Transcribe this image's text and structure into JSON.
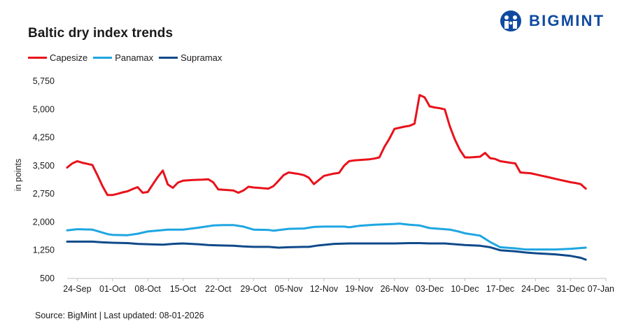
{
  "header": {
    "title": "Baltic dry index trends",
    "brand": "BIGMINT"
  },
  "footer": {
    "source": "Source: BigMint | Last updated: 08-01-2026"
  },
  "colors": {
    "capesize": "#e8121b",
    "panamax": "#1ea6e2",
    "supramax": "#0f4a8a",
    "brand": "#0f4aa1"
  },
  "chart_data": {
    "type": "line",
    "title": "Baltic dry index trends",
    "xlabel": "",
    "ylabel": "in points",
    "ylim": [
      500,
      5750
    ],
    "yticks": [
      500,
      1250,
      2000,
      2750,
      3500,
      4250,
      5000,
      5750
    ],
    "ytick_labels": [
      "500",
      "1,250",
      "2,000",
      "2,750",
      "3,500",
      "4,250",
      "5,000",
      "5,750"
    ],
    "x_start": "2025-09-22",
    "x_end": "2026-01-07",
    "xticks": [
      "2025-09-24",
      "2025-10-01",
      "2025-10-08",
      "2025-10-15",
      "2025-10-22",
      "2025-10-29",
      "2025-11-05",
      "2025-11-12",
      "2025-11-19",
      "2025-11-26",
      "2025-12-03",
      "2025-12-10",
      "2025-12-17",
      "2025-12-24",
      "2025-12-31",
      "2026-01-07"
    ],
    "xtick_labels": [
      "24-Sep",
      "01-Oct",
      "08-Oct",
      "15-Oct",
      "22-Oct",
      "29-Oct",
      "05-Nov",
      "12-Nov",
      "19-Nov",
      "26-Nov",
      "03-Dec",
      "10-Dec",
      "17-Dec",
      "24-Dec",
      "31-Dec",
      "07-Jan"
    ],
    "grid": false,
    "legend_position": "top-left",
    "series": [
      {
        "name": "Capesize",
        "color": "#e8121b",
        "points": [
          [
            "2025-09-22",
            3450
          ],
          [
            "2025-09-23",
            3560
          ],
          [
            "2025-09-24",
            3620
          ],
          [
            "2025-09-25",
            3580
          ],
          [
            "2025-09-26",
            3550
          ],
          [
            "2025-09-27",
            3520
          ],
          [
            "2025-09-28",
            3250
          ],
          [
            "2025-09-29",
            2960
          ],
          [
            "2025-09-30",
            2720
          ],
          [
            "2025-10-01",
            2720
          ],
          [
            "2025-10-02",
            2750
          ],
          [
            "2025-10-03",
            2790
          ],
          [
            "2025-10-04",
            2820
          ],
          [
            "2025-10-05",
            2880
          ],
          [
            "2025-10-06",
            2930
          ],
          [
            "2025-10-07",
            2780
          ],
          [
            "2025-10-08",
            2800
          ],
          [
            "2025-10-09",
            3000
          ],
          [
            "2025-10-10",
            3200
          ],
          [
            "2025-10-11",
            3370
          ],
          [
            "2025-10-12",
            3000
          ],
          [
            "2025-10-13",
            2910
          ],
          [
            "2025-10-14",
            3050
          ],
          [
            "2025-10-15",
            3100
          ],
          [
            "2025-10-16",
            3110
          ],
          [
            "2025-10-17",
            3120
          ],
          [
            "2025-10-18",
            3125
          ],
          [
            "2025-10-19",
            3130
          ],
          [
            "2025-10-20",
            3140
          ],
          [
            "2025-10-21",
            3060
          ],
          [
            "2025-10-22",
            2870
          ],
          [
            "2025-10-23",
            2860
          ],
          [
            "2025-10-24",
            2850
          ],
          [
            "2025-10-25",
            2840
          ],
          [
            "2025-10-26",
            2780
          ],
          [
            "2025-10-27",
            2840
          ],
          [
            "2025-10-28",
            2940
          ],
          [
            "2025-10-29",
            2920
          ],
          [
            "2025-10-30",
            2910
          ],
          [
            "2025-10-31",
            2900
          ],
          [
            "2025-11-01",
            2890
          ],
          [
            "2025-11-02",
            2960
          ],
          [
            "2025-11-03",
            3100
          ],
          [
            "2025-11-04",
            3250
          ],
          [
            "2025-11-05",
            3320
          ],
          [
            "2025-11-06",
            3300
          ],
          [
            "2025-11-07",
            3280
          ],
          [
            "2025-11-08",
            3250
          ],
          [
            "2025-11-09",
            3180
          ],
          [
            "2025-11-10",
            3010
          ],
          [
            "2025-11-11",
            3120
          ],
          [
            "2025-11-12",
            3230
          ],
          [
            "2025-11-13",
            3260
          ],
          [
            "2025-11-14",
            3290
          ],
          [
            "2025-11-15",
            3310
          ],
          [
            "2025-11-16",
            3500
          ],
          [
            "2025-11-17",
            3620
          ],
          [
            "2025-11-18",
            3640
          ],
          [
            "2025-11-19",
            3650
          ],
          [
            "2025-11-20",
            3660
          ],
          [
            "2025-11-21",
            3670
          ],
          [
            "2025-11-22",
            3690
          ],
          [
            "2025-11-23",
            3720
          ],
          [
            "2025-11-24",
            4000
          ],
          [
            "2025-11-25",
            4220
          ],
          [
            "2025-11-26",
            4480
          ],
          [
            "2025-11-27",
            4510
          ],
          [
            "2025-11-28",
            4540
          ],
          [
            "2025-11-29",
            4560
          ],
          [
            "2025-11-30",
            4620
          ],
          [
            "2025-12-01",
            5380
          ],
          [
            "2025-12-02",
            5320
          ],
          [
            "2025-12-03",
            5080
          ],
          [
            "2025-12-04",
            5050
          ],
          [
            "2025-12-05",
            5030
          ],
          [
            "2025-12-06",
            5000
          ],
          [
            "2025-12-07",
            4550
          ],
          [
            "2025-12-08",
            4200
          ],
          [
            "2025-12-09",
            3920
          ],
          [
            "2025-12-10",
            3720
          ],
          [
            "2025-12-11",
            3720
          ],
          [
            "2025-12-12",
            3730
          ],
          [
            "2025-12-13",
            3740
          ],
          [
            "2025-12-14",
            3840
          ],
          [
            "2025-12-15",
            3700
          ],
          [
            "2025-12-16",
            3680
          ],
          [
            "2025-12-17",
            3620
          ],
          [
            "2025-12-18",
            3600
          ],
          [
            "2025-12-19",
            3580
          ],
          [
            "2025-12-20",
            3560
          ],
          [
            "2025-12-21",
            3320
          ],
          [
            "2025-12-22",
            3310
          ],
          [
            "2025-12-23",
            3300
          ],
          [
            "2025-12-24",
            3270
          ],
          [
            "2025-12-25",
            3240
          ],
          [
            "2025-12-26",
            3210
          ],
          [
            "2025-12-27",
            3180
          ],
          [
            "2025-12-28",
            3150
          ],
          [
            "2025-12-29",
            3120
          ],
          [
            "2025-12-30",
            3090
          ],
          [
            "2025-12-31",
            3060
          ],
          [
            "2026-01-01",
            3040
          ],
          [
            "2026-01-02",
            3010
          ],
          [
            "2026-01-03",
            2890
          ]
        ]
      },
      {
        "name": "Panamax",
        "color": "#1ea6e2",
        "points": [
          [
            "2025-09-22",
            1780
          ],
          [
            "2025-09-24",
            1810
          ],
          [
            "2025-09-27",
            1800
          ],
          [
            "2025-09-30",
            1680
          ],
          [
            "2025-10-01",
            1660
          ],
          [
            "2025-10-04",
            1650
          ],
          [
            "2025-10-06",
            1690
          ],
          [
            "2025-10-08",
            1750
          ],
          [
            "2025-10-12",
            1800
          ],
          [
            "2025-10-15",
            1800
          ],
          [
            "2025-10-18",
            1850
          ],
          [
            "2025-10-21",
            1910
          ],
          [
            "2025-10-23",
            1920
          ],
          [
            "2025-10-25",
            1920
          ],
          [
            "2025-10-27",
            1880
          ],
          [
            "2025-10-29",
            1800
          ],
          [
            "2025-11-01",
            1790
          ],
          [
            "2025-11-02",
            1770
          ],
          [
            "2025-11-05",
            1820
          ],
          [
            "2025-11-08",
            1830
          ],
          [
            "2025-11-10",
            1870
          ],
          [
            "2025-11-12",
            1880
          ],
          [
            "2025-11-16",
            1880
          ],
          [
            "2025-11-17",
            1860
          ],
          [
            "2025-11-19",
            1900
          ],
          [
            "2025-11-22",
            1930
          ],
          [
            "2025-11-26",
            1950
          ],
          [
            "2025-11-27",
            1960
          ],
          [
            "2025-11-29",
            1930
          ],
          [
            "2025-12-01",
            1910
          ],
          [
            "2025-12-03",
            1840
          ],
          [
            "2025-12-05",
            1820
          ],
          [
            "2025-12-07",
            1800
          ],
          [
            "2025-12-09",
            1740
          ],
          [
            "2025-12-10",
            1700
          ],
          [
            "2025-12-13",
            1640
          ],
          [
            "2025-12-15",
            1470
          ],
          [
            "2025-12-17",
            1330
          ],
          [
            "2025-12-20",
            1300
          ],
          [
            "2025-12-22",
            1270
          ],
          [
            "2025-12-24",
            1270
          ],
          [
            "2025-12-28",
            1270
          ],
          [
            "2025-12-31",
            1290
          ],
          [
            "2026-01-03",
            1320
          ]
        ]
      },
      {
        "name": "Supramax",
        "color": "#0f4a8a",
        "points": [
          [
            "2025-09-22",
            1480
          ],
          [
            "2025-09-24",
            1480
          ],
          [
            "2025-09-27",
            1480
          ],
          [
            "2025-09-29",
            1460
          ],
          [
            "2025-10-01",
            1450
          ],
          [
            "2025-10-04",
            1440
          ],
          [
            "2025-10-06",
            1420
          ],
          [
            "2025-10-08",
            1410
          ],
          [
            "2025-10-11",
            1400
          ],
          [
            "2025-10-13",
            1420
          ],
          [
            "2025-10-15",
            1430
          ],
          [
            "2025-10-18",
            1410
          ],
          [
            "2025-10-20",
            1390
          ],
          [
            "2025-10-22",
            1380
          ],
          [
            "2025-10-25",
            1370
          ],
          [
            "2025-10-27",
            1350
          ],
          [
            "2025-10-29",
            1340
          ],
          [
            "2025-11-01",
            1340
          ],
          [
            "2025-11-03",
            1320
          ],
          [
            "2025-11-05",
            1330
          ],
          [
            "2025-11-08",
            1340
          ],
          [
            "2025-11-09",
            1340
          ],
          [
            "2025-11-11",
            1380
          ],
          [
            "2025-11-14",
            1420
          ],
          [
            "2025-11-17",
            1430
          ],
          [
            "2025-11-19",
            1430
          ],
          [
            "2025-11-22",
            1430
          ],
          [
            "2025-11-25",
            1430
          ],
          [
            "2025-11-26",
            1430
          ],
          [
            "2025-11-29",
            1440
          ],
          [
            "2025-12-01",
            1440
          ],
          [
            "2025-12-03",
            1430
          ],
          [
            "2025-12-06",
            1430
          ],
          [
            "2025-12-08",
            1410
          ],
          [
            "2025-12-10",
            1390
          ],
          [
            "2025-12-13",
            1370
          ],
          [
            "2025-12-15",
            1330
          ],
          [
            "2025-12-17",
            1250
          ],
          [
            "2025-12-20",
            1220
          ],
          [
            "2025-12-22",
            1190
          ],
          [
            "2025-12-24",
            1170
          ],
          [
            "2025-12-28",
            1140
          ],
          [
            "2025-12-31",
            1100
          ],
          [
            "2026-01-02",
            1050
          ],
          [
            "2026-01-03",
            1000
          ]
        ]
      }
    ]
  }
}
